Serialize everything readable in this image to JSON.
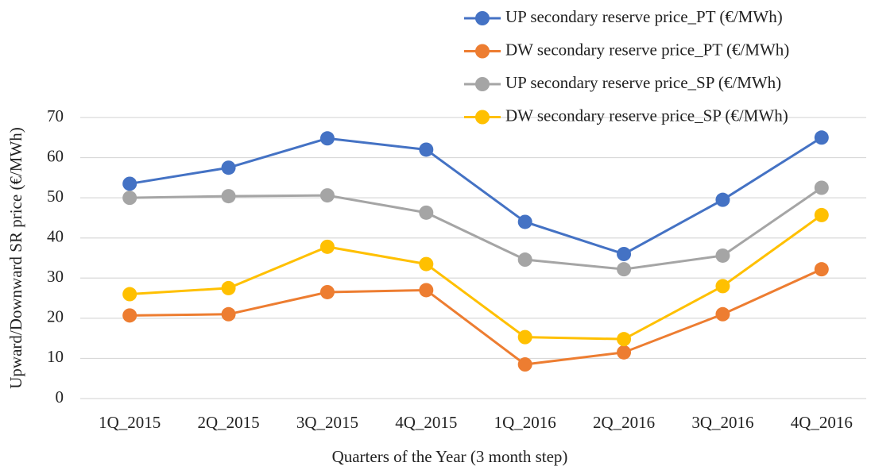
{
  "chart_data": {
    "type": "line",
    "x_label": "Quarters of the Year (3 month step)",
    "y_label": "Upward/Downward SR price (€/MWh)",
    "categories": [
      "1Q_2015",
      "2Q_2015",
      "3Q_2015",
      "4Q_2015",
      "1Q_2016",
      "2Q_2016",
      "3Q_2016",
      "4Q_2016"
    ],
    "series": [
      {
        "name": "UP secondary reserve price_PT (€/MWh)",
        "color": "#4472c4",
        "values": [
          53.5,
          57.5,
          64.8,
          62,
          44,
          36,
          49.5,
          65
        ]
      },
      {
        "name": "DW secondary reserve price_PT (€/MWh)",
        "color": "#ed7d31",
        "values": [
          20.7,
          21,
          26.5,
          27,
          8.5,
          11.5,
          21,
          32.2
        ]
      },
      {
        "name": "UP secondary reserve price_SP (€/MWh)",
        "color": "#a5a5a5",
        "values": [
          50,
          50.4,
          50.6,
          46.3,
          34.6,
          32.2,
          35.6,
          52.5
        ]
      },
      {
        "name": "DW secondary reserve price_SP (€/MWh)",
        "color": "#ffc000",
        "values": [
          26,
          27.5,
          37.8,
          33.5,
          15.3,
          14.8,
          28,
          45.7
        ]
      }
    ],
    "ylim": [
      0,
      70
    ],
    "yticks": [
      0,
      10,
      20,
      30,
      40,
      50,
      60,
      70
    ],
    "grid": true,
    "legend": "top-right"
  }
}
